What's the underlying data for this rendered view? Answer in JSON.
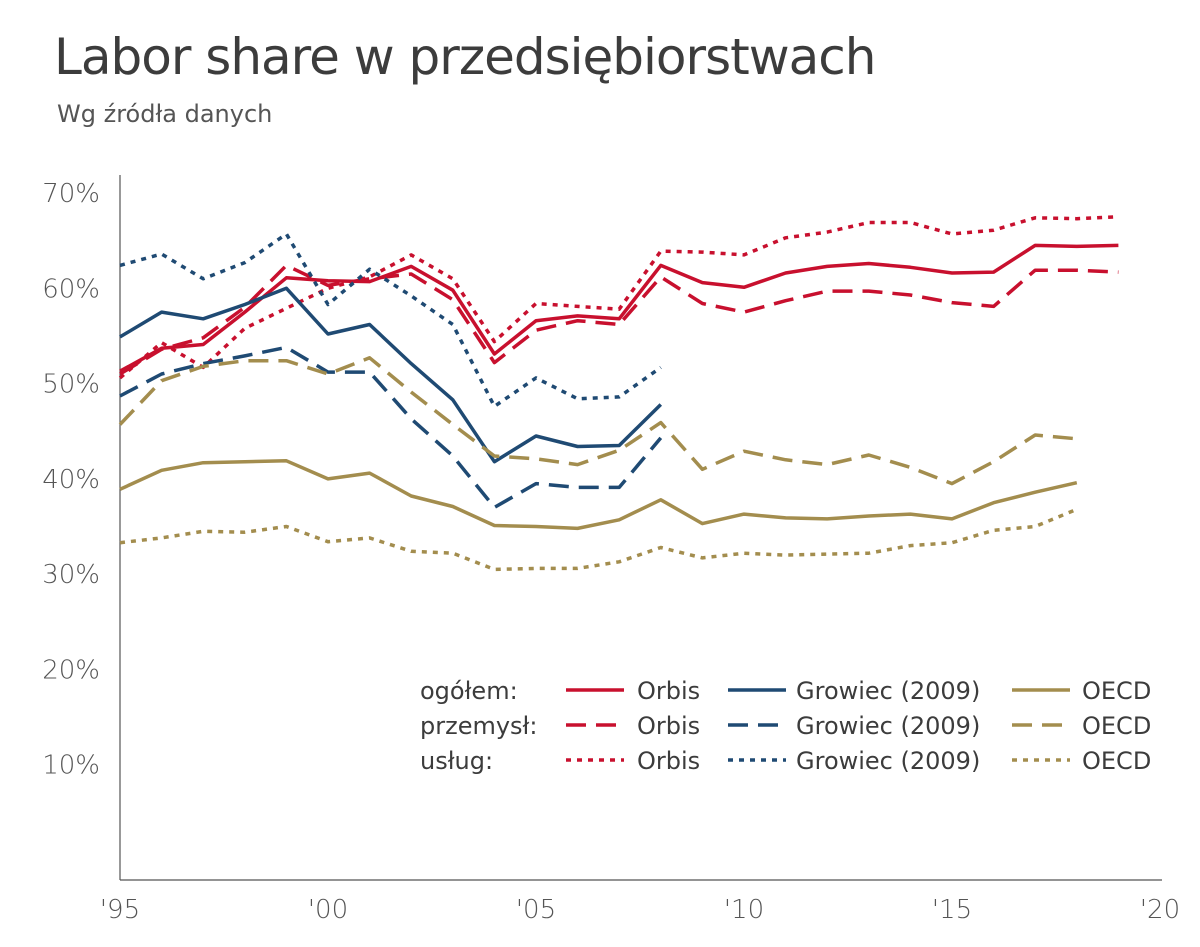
{
  "title": "Labor share w przedsiębiorstwach",
  "subtitle": "Wg źródła danych",
  "colors": {
    "orbis": "#c8102e",
    "growiec": "#1f4a73",
    "oecd": "#a38d4e",
    "axis": "#555555"
  },
  "legend": {
    "rows": [
      "ogółem:",
      "przemysł:",
      "usług:"
    ],
    "series_names": [
      "Orbis",
      "Growiec (2009)",
      "OECD"
    ]
  },
  "chart_data": {
    "type": "line",
    "ylim": [
      0,
      70
    ],
    "xlim": [
      1995,
      2020
    ],
    "y_ticks": [
      10,
      20,
      30,
      40,
      50,
      60,
      70
    ],
    "y_tick_labels": [
      "10%",
      "20%",
      "30%",
      "40%",
      "50%",
      "60%",
      "70%"
    ],
    "x_ticks": [
      1995,
      2000,
      2005,
      2010,
      2015,
      2020
    ],
    "x_tick_labels": [
      "'95",
      "'00",
      "'05",
      "'10",
      "'15",
      "'20"
    ],
    "grid": false,
    "legend_position": "bottom-right",
    "series": [
      {
        "group": "ogółem",
        "name": "Orbis",
        "color": "#c8102e",
        "dash": "solid",
        "x": [
          1995,
          1996,
          1997,
          1998,
          1999,
          2000,
          2001,
          2002,
          2003,
          2004,
          2005,
          2006,
          2007,
          2008,
          2009,
          2010,
          2011,
          2012,
          2013,
          2014,
          2015,
          2016,
          2017,
          2018,
          2019
        ],
        "y": [
          51.3,
          53.7,
          54.1,
          57.5,
          61.1,
          60.8,
          60.7,
          62.3,
          59.8,
          53.1,
          56.6,
          57.1,
          56.8,
          62.4,
          60.6,
          60.1,
          61.6,
          62.3,
          62.6,
          62.2,
          61.6,
          61.7,
          64.5,
          64.4,
          64.5
        ]
      },
      {
        "group": "przemysł",
        "name": "Orbis",
        "color": "#c8102e",
        "dash": "dashed",
        "x": [
          1995,
          1996,
          1997,
          1998,
          1999,
          2000,
          2001,
          2002,
          2003,
          2004,
          2005,
          2006,
          2007,
          2008,
          2009,
          2010,
          2011,
          2012,
          2013,
          2014,
          2015,
          2016,
          2017,
          2018,
          2019
        ],
        "y": [
          51.0,
          53.6,
          54.8,
          58.0,
          62.4,
          60.3,
          61.0,
          61.5,
          58.8,
          52.2,
          55.6,
          56.6,
          56.2,
          61.2,
          58.4,
          57.5,
          58.7,
          59.7,
          59.7,
          59.3,
          58.5,
          58.1,
          61.9,
          61.9,
          61.7
        ]
      },
      {
        "group": "usług",
        "name": "Orbis",
        "color": "#c8102e",
        "dash": "dotted",
        "x": [
          1995,
          1996,
          1997,
          1998,
          1999,
          2000,
          2001,
          2002,
          2003,
          2004,
          2005,
          2006,
          2007,
          2008,
          2009,
          2010,
          2011,
          2012,
          2013,
          2014,
          2015,
          2016,
          2017,
          2018,
          2019
        ],
        "y": [
          50.6,
          54.3,
          51.7,
          55.8,
          57.9,
          60.0,
          61.2,
          63.5,
          61.0,
          54.4,
          58.4,
          58.1,
          57.8,
          63.9,
          63.8,
          63.5,
          65.3,
          65.9,
          66.9,
          66.9,
          65.7,
          66.1,
          67.4,
          67.3,
          67.5
        ]
      },
      {
        "group": "ogółem",
        "name": "Growiec (2009)",
        "color": "#1f4a73",
        "dash": "solid",
        "x": [
          1995,
          1996,
          1997,
          1998,
          1999,
          2000,
          2001,
          2002,
          2003,
          2004,
          2005,
          2006,
          2007,
          2008
        ],
        "y": [
          54.9,
          57.5,
          56.8,
          58.3,
          60.0,
          55.2,
          56.2,
          52.1,
          48.3,
          41.8,
          44.5,
          43.4,
          43.5,
          47.8
        ]
      },
      {
        "group": "przemysł",
        "name": "Growiec (2009)",
        "color": "#1f4a73",
        "dash": "dashed",
        "x": [
          1995,
          1996,
          1997,
          1998,
          1999,
          2000,
          2001,
          2002,
          2003,
          2004,
          2005,
          2006,
          2007,
          2008
        ],
        "y": [
          48.7,
          51.0,
          52.1,
          52.9,
          53.8,
          51.2,
          51.2,
          46.3,
          42.4,
          37.0,
          39.5,
          39.1,
          39.1,
          44.3
        ]
      },
      {
        "group": "usług",
        "name": "Growiec (2009)",
        "color": "#1f4a73",
        "dash": "dotted",
        "x": [
          1995,
          1996,
          1997,
          1998,
          1999,
          2000,
          2001,
          2002,
          2003,
          2004,
          2005,
          2006,
          2007,
          2008
        ],
        "y": [
          62.4,
          63.6,
          61.0,
          62.7,
          65.7,
          58.3,
          62.0,
          59.2,
          56.2,
          47.6,
          50.6,
          48.4,
          48.6,
          51.7
        ]
      },
      {
        "group": "ogółem",
        "name": "OECD",
        "color": "#a38d4e",
        "dash": "solid",
        "x": [
          1995,
          1996,
          1997,
          1998,
          1999,
          2000,
          2001,
          2002,
          2003,
          2004,
          2005,
          2006,
          2007,
          2008,
          2009,
          2010,
          2011,
          2012,
          2013,
          2014,
          2015,
          2016,
          2017,
          2018
        ],
        "y": [
          38.9,
          40.9,
          41.7,
          41.8,
          41.9,
          40.0,
          40.6,
          38.2,
          37.1,
          35.1,
          35.0,
          34.8,
          35.7,
          37.8,
          35.3,
          36.3,
          35.9,
          35.8,
          36.1,
          36.3,
          35.8,
          37.5,
          38.6,
          39.6
        ]
      },
      {
        "group": "przemysł",
        "name": "OECD",
        "color": "#a38d4e",
        "dash": "dashed",
        "x": [
          1995,
          1996,
          1997,
          1998,
          1999,
          2000,
          2001,
          2002,
          2003,
          2004,
          2005,
          2006,
          2007,
          2008,
          2009,
          2010,
          2011,
          2012,
          2013,
          2014,
          2015,
          2016,
          2017,
          2018
        ],
        "y": [
          45.7,
          50.3,
          51.8,
          52.4,
          52.4,
          51.0,
          52.7,
          49.1,
          45.7,
          42.4,
          42.1,
          41.5,
          43.0,
          45.9,
          41.0,
          42.9,
          42.0,
          41.5,
          42.5,
          41.2,
          39.5,
          41.8,
          44.6,
          44.2
        ]
      },
      {
        "group": "usług",
        "name": "OECD",
        "color": "#a38d4e",
        "dash": "dotted",
        "x": [
          1995,
          1996,
          1997,
          1998,
          1999,
          2000,
          2001,
          2002,
          2003,
          2004,
          2005,
          2006,
          2007,
          2008,
          2009,
          2010,
          2011,
          2012,
          2013,
          2014,
          2015,
          2016,
          2017,
          2018
        ],
        "y": [
          33.3,
          33.8,
          34.5,
          34.4,
          35.0,
          33.4,
          33.8,
          32.4,
          32.2,
          30.5,
          30.6,
          30.6,
          31.3,
          32.8,
          31.7,
          32.2,
          32.0,
          32.1,
          32.2,
          33.0,
          33.3,
          34.6,
          35.0,
          36.8
        ]
      }
    ]
  }
}
